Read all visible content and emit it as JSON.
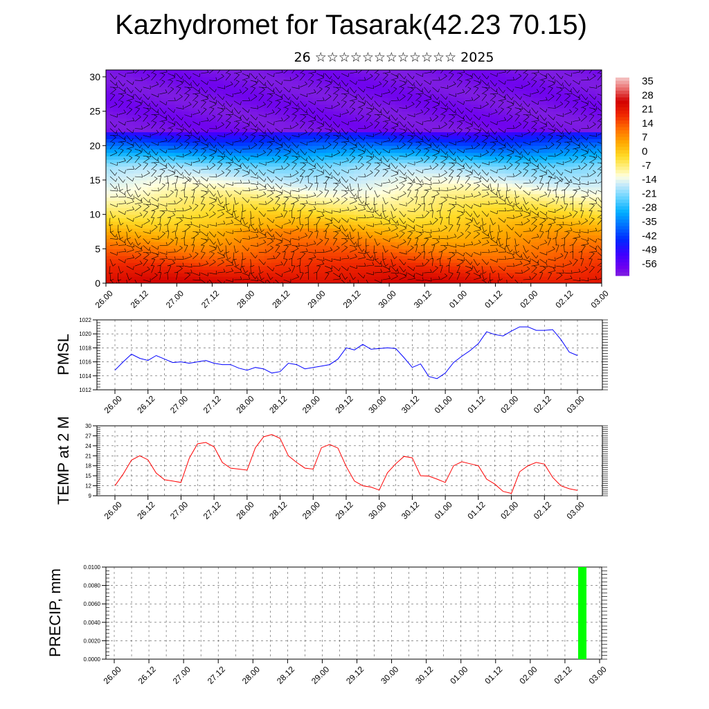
{
  "title": "Kazhydromet for Tasarak(42.23 70.15)",
  "subtitle": "26 ☆☆☆☆☆☆☆☆☆☆☆☆ 2025",
  "time_ticks": [
    "26.00",
    "26.12",
    "27.00",
    "27.12",
    "28.00",
    "28.12",
    "29.00",
    "29.12",
    "30.00",
    "30.12",
    "01.00",
    "01.12",
    "02.00",
    "02.12",
    "03.00"
  ],
  "colorbar_labels": [
    "35",
    "28",
    "21",
    "14",
    "7",
    "0",
    "-7",
    "-14",
    "-21",
    "-28",
    "-35",
    "-42",
    "-49",
    "-56"
  ],
  "colors": {
    "pmsl_line": "#0000ff",
    "temp_line": "#ff0000",
    "precip_bar": "#00ff00"
  },
  "chart_data": [
    {
      "type": "heatmap",
      "description": "Vertical cross-section of air temperature with wind barbs",
      "x_ticks": [
        "26.00",
        "26.12",
        "27.00",
        "27.12",
        "28.00",
        "28.12",
        "29.00",
        "29.12",
        "30.00",
        "30.12",
        "01.00",
        "01.12",
        "02.00",
        "02.12",
        "03.00"
      ],
      "y_ticks": [
        0,
        5,
        10,
        15,
        20,
        25,
        30
      ],
      "ylim": [
        0,
        31
      ],
      "colorbar": {
        "labels": [
          35,
          28,
          21,
          14,
          7,
          0,
          -7,
          -14,
          -21,
          -28,
          -35,
          -42,
          -49,
          -56
        ]
      }
    },
    {
      "type": "line",
      "ylabel": "PMSL",
      "ylim": [
        1012,
        1022
      ],
      "y_ticks": [
        1012,
        1014,
        1016,
        1018,
        1020,
        1022
      ],
      "x_ticks": [
        "26.00",
        "26.12",
        "27.00",
        "27.12",
        "28.00",
        "28.12",
        "29.00",
        "29.12",
        "30.00",
        "30.12",
        "01.00",
        "01.12",
        "02.00",
        "02.12",
        "03.00"
      ],
      "grid": true,
      "series": [
        {
          "color": "#0000ff",
          "values": [
            1014.8,
            1016.0,
            1017.1,
            1016.5,
            1016.2,
            1016.9,
            1016.4,
            1015.9,
            1016.0,
            1015.8,
            1016.0,
            1016.2,
            1015.8,
            1015.6,
            1015.6,
            1015.1,
            1014.8,
            1015.2,
            1015.0,
            1014.4,
            1014.6,
            1015.8,
            1015.6,
            1015.0,
            1015.2,
            1015.4,
            1015.6,
            1016.4,
            1018.0,
            1017.7,
            1018.5,
            1017.8,
            1017.9,
            1018.0,
            1017.9,
            1016.6,
            1015.2,
            1015.7,
            1013.9,
            1013.6,
            1014.4,
            1015.9,
            1016.8,
            1017.6,
            1018.6,
            1020.3,
            1019.9,
            1019.7,
            1020.4,
            1021.0,
            1021.0,
            1020.5,
            1020.5,
            1020.6,
            1019.2,
            1017.4,
            1016.9
          ]
        }
      ]
    },
    {
      "type": "line",
      "ylabel": "TEMP at 2 M",
      "ylim": [
        9,
        30
      ],
      "y_ticks": [
        9,
        12,
        15,
        18,
        21,
        24,
        27,
        30
      ],
      "x_ticks": [
        "26.00",
        "26.12",
        "27.00",
        "27.12",
        "28.00",
        "28.12",
        "29.00",
        "29.12",
        "30.00",
        "30.12",
        "01.00",
        "01.12",
        "02.00",
        "02.12",
        "03.00"
      ],
      "grid": true,
      "series": [
        {
          "color": "#ff0000",
          "values": [
            12.0,
            15.5,
            19.7,
            21.0,
            19.8,
            15.8,
            13.8,
            13.4,
            13.0,
            20.3,
            24.6,
            25.0,
            23.7,
            19.0,
            17.3,
            17.0,
            16.7,
            23.4,
            26.7,
            27.4,
            26.2,
            21.0,
            19.0,
            17.3,
            17.0,
            23.4,
            24.4,
            23.3,
            17.8,
            13.4,
            12.0,
            11.6,
            10.7,
            15.9,
            18.6,
            20.8,
            20.4,
            15.0,
            14.9,
            14.0,
            13.0,
            18.0,
            19.2,
            18.6,
            18.0,
            14.0,
            12.5,
            10.3,
            9.7,
            16.2,
            18.0,
            19.0,
            18.5,
            14.5,
            12.0,
            11.1,
            10.6
          ]
        }
      ]
    },
    {
      "type": "bar",
      "ylabel": "PRECIP, mm",
      "ylim": [
        0,
        0.01
      ],
      "y_ticks": [
        "0.0000",
        "0.0020",
        "0.0040",
        "0.0060",
        "0.0080",
        "0.0100"
      ],
      "x_ticks": [
        "26.00",
        "26.12",
        "27.00",
        "27.12",
        "28.00",
        "28.12",
        "29.00",
        "29.12",
        "30.00",
        "30.12",
        "01.00",
        "01.12",
        "02.00",
        "02.12",
        "03.00"
      ],
      "grid": true,
      "bars": [
        {
          "time_hours": 162,
          "value": 0.01,
          "color": "#00ff00"
        }
      ]
    }
  ]
}
